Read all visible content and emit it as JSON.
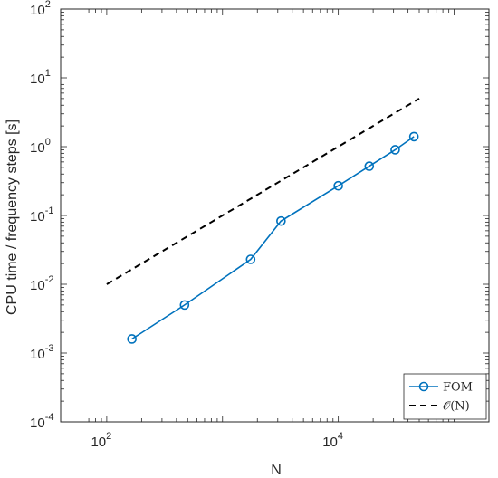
{
  "chart_data": {
    "type": "line",
    "xscale": "log",
    "yscale": "log",
    "xlim": [
      40,
      200000
    ],
    "ylim": [
      0.0001,
      100
    ],
    "xlabel": "N",
    "ylabel": "CPU time / frequency steps [s]",
    "grid": false,
    "legend_position": "bottom-right",
    "xticks": [
      {
        "base": "10",
        "exp": "2",
        "value": 100
      },
      {
        "base": "10",
        "exp": "4",
        "value": 10000
      }
    ],
    "yticks": [
      {
        "base": "10",
        "exp": "-4",
        "value": 0.0001
      },
      {
        "base": "10",
        "exp": "-3",
        "value": 0.001
      },
      {
        "base": "10",
        "exp": "-2",
        "value": 0.01
      },
      {
        "base": "10",
        "exp": "-1",
        "value": 0.1
      },
      {
        "base": "10",
        "exp": "0",
        "value": 1
      },
      {
        "base": "10",
        "exp": "1",
        "value": 10
      },
      {
        "base": "10",
        "exp": "2",
        "value": 100
      }
    ],
    "series": [
      {
        "name": "FOM",
        "color": "#0072BD",
        "style": "solid",
        "marker": "circle",
        "x": [
          165,
          470,
          1750,
          3200,
          10000,
          18500,
          31000,
          45000
        ],
        "y": [
          0.0016,
          0.005,
          0.023,
          0.083,
          0.27,
          0.52,
          0.9,
          1.4
        ]
      },
      {
        "name": "𝒪(N)",
        "color": "#000000",
        "style": "dashed",
        "marker": "none",
        "x": [
          100,
          50000
        ],
        "y": [
          0.01,
          5
        ]
      }
    ]
  }
}
